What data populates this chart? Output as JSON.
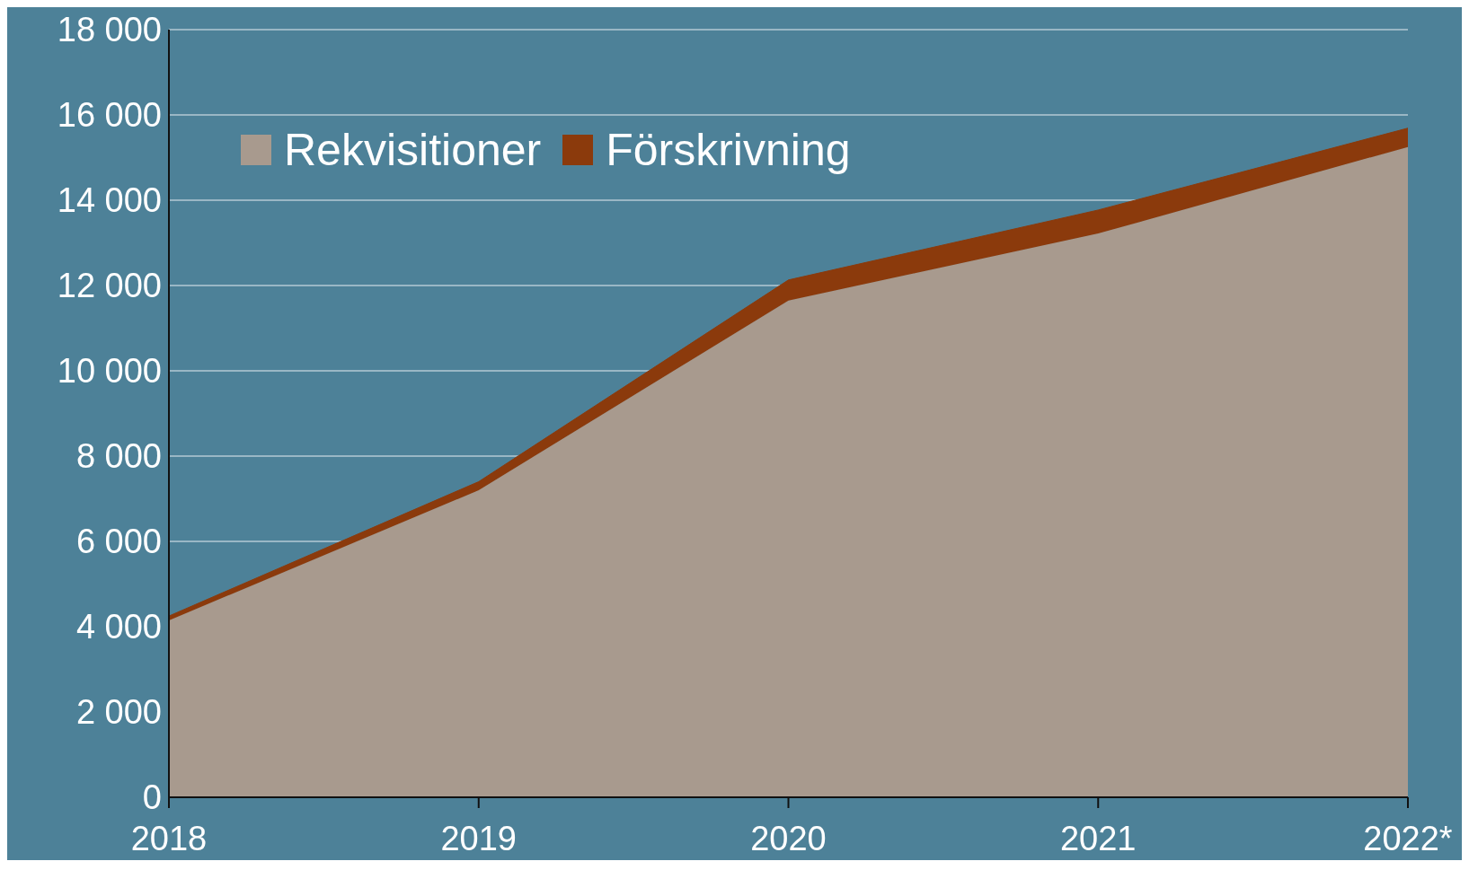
{
  "chart_data": {
    "type": "area",
    "stacked": true,
    "categories": [
      "2018",
      "2019",
      "2020",
      "2021",
      "2022*"
    ],
    "series": [
      {
        "name": "Rekvisitioner",
        "color": "#a89a8e",
        "values": [
          4150,
          7200,
          11650,
          13220,
          15250
        ]
      },
      {
        "name": "Förskrivning",
        "color": "#8b3a0c",
        "values": [
          100,
          200,
          480,
          550,
          440
        ]
      }
    ],
    "ylim": [
      0,
      18000
    ],
    "yticks": [
      {
        "value": 0,
        "label": "0"
      },
      {
        "value": 2000,
        "label": "2 000"
      },
      {
        "value": 4000,
        "label": "4 000"
      },
      {
        "value": 6000,
        "label": "6 000"
      },
      {
        "value": 8000,
        "label": "8 000"
      },
      {
        "value": 10000,
        "label": "10 000"
      },
      {
        "value": 12000,
        "label": "12 000"
      },
      {
        "value": 14000,
        "label": "14 000"
      },
      {
        "value": 16000,
        "label": "16 000"
      },
      {
        "value": 18000,
        "label": "18 000"
      }
    ],
    "grid": "y",
    "legend": "top left"
  }
}
